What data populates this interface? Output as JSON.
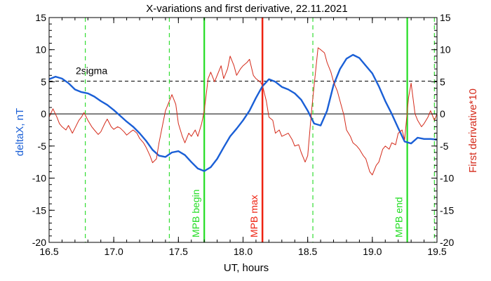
{
  "chart_data": {
    "type": "line",
    "title": "X-variations and first derivative, 22.11.2021",
    "xlabel": "UT, hours",
    "ylabel_left": "deltaX, nT",
    "ylabel_right": "First derivative*10",
    "xlim": [
      16.5,
      19.5
    ],
    "ylim": [
      -20,
      15
    ],
    "x_ticks": [
      "16.5",
      "17.0",
      "17.5",
      "18.0",
      "18.5",
      "19.0",
      "19.5"
    ],
    "y_ticks": [
      "-20",
      "-15",
      "-10",
      "-5",
      "0",
      "5",
      "10",
      "15"
    ],
    "colors": {
      "deltaX": "#1a5fd6",
      "derivative": "#d42a1a",
      "mpb_boundary": "#22dd22",
      "dashed_markers": "#33dd33",
      "mpb_max": "#ee2211",
      "reference": "#000000"
    },
    "reference_lines": [
      {
        "label": "2sigma",
        "y": 5.1,
        "style": "dashed"
      },
      {
        "label": "",
        "y": 0,
        "style": "solid"
      }
    ],
    "vertical_markers": [
      {
        "x": 16.78,
        "style": "dashed",
        "label": ""
      },
      {
        "x": 17.43,
        "style": "dashed",
        "label": ""
      },
      {
        "x": 17.7,
        "style": "solid",
        "label": "MPB begin"
      },
      {
        "x": 18.15,
        "style": "solid-red",
        "label": "MPB max"
      },
      {
        "x": 18.54,
        "style": "dashed",
        "label": ""
      },
      {
        "x": 19.27,
        "style": "solid",
        "label": "MPB end"
      },
      {
        "x": 19.48,
        "style": "dashed",
        "label": ""
      }
    ],
    "series": [
      {
        "name": "deltaX, nT",
        "x": [
          16.5,
          16.55,
          16.6,
          16.65,
          16.7,
          16.75,
          16.8,
          16.85,
          16.9,
          16.95,
          17.0,
          17.05,
          17.1,
          17.15,
          17.2,
          17.25,
          17.3,
          17.35,
          17.4,
          17.45,
          17.5,
          17.55,
          17.6,
          17.65,
          17.7,
          17.75,
          17.8,
          17.85,
          17.9,
          17.95,
          18.0,
          18.05,
          18.1,
          18.15,
          18.2,
          18.25,
          18.3,
          18.35,
          18.4,
          18.45,
          18.5,
          18.55,
          18.6,
          18.65,
          18.7,
          18.75,
          18.8,
          18.85,
          18.9,
          18.95,
          19.0,
          19.05,
          19.1,
          19.15,
          19.2,
          19.25,
          19.3,
          19.35,
          19.4,
          19.45,
          19.5
        ],
        "y": [
          5.4,
          5.8,
          5.5,
          4.8,
          3.8,
          3.4,
          3.2,
          2.7,
          2.0,
          1.4,
          0.6,
          -0.3,
          -1.2,
          -2.0,
          -3.0,
          -4.2,
          -5.6,
          -6.5,
          -6.7,
          -6.0,
          -5.8,
          -6.4,
          -7.5,
          -8.5,
          -8.9,
          -8.3,
          -7.0,
          -5.2,
          -3.5,
          -2.3,
          -1.0,
          0.5,
          2.5,
          4.3,
          5.4,
          5.0,
          4.2,
          3.8,
          3.2,
          2.2,
          0.5,
          -1.5,
          -1.8,
          0.5,
          4.5,
          7.0,
          8.6,
          9.2,
          8.7,
          7.5,
          6.3,
          4.3,
          2.0,
          0.0,
          -2.2,
          -4.3,
          -4.6,
          -3.7,
          -3.9,
          -3.9,
          -4.0
        ]
      },
      {
        "name": "First derivative*10",
        "x": [
          16.5,
          16.53,
          16.56,
          16.58,
          16.6,
          16.63,
          16.65,
          16.68,
          16.7,
          16.73,
          16.75,
          16.77,
          16.8,
          16.83,
          16.85,
          16.88,
          16.9,
          16.93,
          16.95,
          16.98,
          17.0,
          17.03,
          17.05,
          17.08,
          17.1,
          17.13,
          17.15,
          17.18,
          17.2,
          17.23,
          17.25,
          17.28,
          17.3,
          17.33,
          17.35,
          17.38,
          17.4,
          17.43,
          17.45,
          17.48,
          17.5,
          17.53,
          17.55,
          17.58,
          17.6,
          17.63,
          17.65,
          17.68,
          17.7,
          17.73,
          17.75,
          17.78,
          17.8,
          17.83,
          17.85,
          17.88,
          17.9,
          17.93,
          17.95,
          17.98,
          18.0,
          18.03,
          18.05,
          18.08,
          18.1,
          18.13,
          18.15,
          18.18,
          18.2,
          18.23,
          18.25,
          18.28,
          18.3,
          18.33,
          18.35,
          18.38,
          18.4,
          18.43,
          18.45,
          18.48,
          18.5,
          18.53,
          18.55,
          18.58,
          18.6,
          18.63,
          18.65,
          18.68,
          18.7,
          18.73,
          18.75,
          18.78,
          18.8,
          18.83,
          18.85,
          18.88,
          18.9,
          18.93,
          18.95,
          18.98,
          19.0,
          19.03,
          19.05,
          19.08,
          19.1,
          19.13,
          19.15,
          19.18,
          19.2,
          19.23,
          19.25,
          19.28,
          19.3,
          19.33,
          19.35,
          19.38,
          19.4,
          19.43,
          19.45,
          19.48,
          19.5
        ],
        "y": [
          -0.5,
          0.8,
          -0.5,
          -1.5,
          -2.0,
          -2.5,
          -1.8,
          -3.0,
          -2.2,
          -1.0,
          -0.5,
          0.2,
          -1.0,
          -2.0,
          -2.5,
          -3.2,
          -2.8,
          -1.5,
          -0.8,
          -2.0,
          -2.4,
          -2.0,
          -2.2,
          -2.8,
          -3.3,
          -2.8,
          -2.5,
          -3.0,
          -3.8,
          -4.5,
          -5.2,
          -6.5,
          -7.6,
          -7.0,
          -4.5,
          -1.5,
          0.5,
          2.0,
          3.0,
          1.5,
          -1.5,
          -3.5,
          -4.5,
          -3.0,
          -3.5,
          -2.5,
          -3.5,
          -1.5,
          0.5,
          5.5,
          6.5,
          5.0,
          6.0,
          7.5,
          5.5,
          7.0,
          9.0,
          7.5,
          6.0,
          7.0,
          7.5,
          8.0,
          8.5,
          6.0,
          5.5,
          5.0,
          4.5,
          2.0,
          -0.5,
          -1.0,
          -3.0,
          -2.5,
          -3.5,
          -3.2,
          -3.0,
          -4.0,
          -5.0,
          -4.8,
          -6.0,
          -7.5,
          -6.5,
          0.5,
          4.5,
          10.3,
          10.0,
          9.5,
          8.0,
          6.5,
          5.0,
          3.5,
          2.0,
          -0.2,
          -2.5,
          -3.5,
          -4.5,
          -5.0,
          -5.5,
          -6.5,
          -7.0,
          -9.0,
          -9.5,
          -8.0,
          -7.5,
          -5.5,
          -5.0,
          -5.5,
          -4.5,
          -4.8,
          -3.0,
          -2.5,
          -4.0,
          2.5,
          4.8,
          0.0,
          -1.0,
          -2.0,
          -1.5,
          -0.5,
          0.5,
          -1.0,
          0.0
        ]
      }
    ]
  }
}
